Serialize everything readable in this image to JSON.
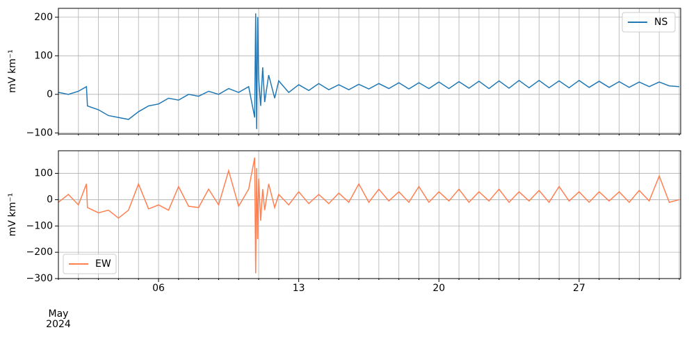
{
  "chart_data": [
    {
      "type": "line",
      "ylabel": "mV km⁻¹",
      "legend": "upper right",
      "grid": true,
      "xlim": [
        1,
        32.07
      ],
      "ylim": [
        -103,
        223
      ],
      "yticks": [
        {
          "value": -100,
          "label": "−100"
        },
        0,
        100,
        200
      ],
      "xminor": [
        1,
        2,
        3,
        4,
        5,
        6,
        7,
        8,
        9,
        10,
        11,
        12,
        13,
        14,
        15,
        16,
        17,
        18,
        19,
        20,
        21,
        22,
        23,
        24,
        25,
        26,
        27,
        28,
        29,
        30,
        31,
        32
      ],
      "x": [
        1,
        1.5,
        2,
        2.4,
        2.45,
        3,
        3.5,
        4,
        4.5,
        5,
        5.5,
        6,
        6.5,
        7,
        7.5,
        8,
        8.5,
        9,
        9.5,
        10,
        10.5,
        10.8,
        10.85,
        10.9,
        10.95,
        11,
        11.1,
        11.2,
        11.3,
        11.5,
        11.8,
        12,
        12.5,
        13,
        13.5,
        14,
        14.5,
        15,
        15.5,
        16,
        16.5,
        17,
        17.5,
        18,
        18.5,
        19,
        19.5,
        20,
        20.5,
        21,
        21.5,
        22,
        22.5,
        23,
        23.5,
        24,
        24.5,
        25,
        25.5,
        26,
        26.5,
        27,
        27.5,
        28,
        28.5,
        29,
        29.5,
        30,
        30.5,
        31,
        31.5,
        32
      ],
      "series": [
        {
          "name": "NS",
          "color": "#1f77b4",
          "values": [
            5,
            0,
            8,
            20,
            -30,
            -40,
            -55,
            -60,
            -65,
            -45,
            -30,
            -25,
            -10,
            -15,
            0,
            -5,
            8,
            0,
            15,
            5,
            20,
            -60,
            210,
            -90,
            200,
            40,
            -30,
            70,
            -20,
            50,
            -10,
            35,
            5,
            25,
            10,
            28,
            12,
            25,
            12,
            26,
            14,
            28,
            15,
            30,
            14,
            30,
            15,
            32,
            15,
            33,
            16,
            34,
            15,
            35,
            16,
            36,
            17,
            36,
            17,
            35,
            17,
            36,
            18,
            34,
            18,
            33,
            18,
            32,
            20,
            32,
            22,
            20
          ]
        }
      ]
    },
    {
      "type": "line",
      "ylabel": "mV km⁻¹",
      "legend": "lower left",
      "grid": true,
      "xlim": [
        1,
        32.07
      ],
      "ylim": [
        -300,
        186
      ],
      "yticks": [
        {
          "value": -300,
          "label": "−300"
        },
        {
          "value": -200,
          "label": "−200"
        },
        {
          "value": -100,
          "label": "−100"
        },
        0,
        100
      ],
      "xticks": [
        {
          "value": 6,
          "label": "06"
        },
        13,
        20,
        27
      ],
      "xminor": [
        1,
        2,
        3,
        4,
        5,
        7,
        8,
        9,
        10,
        11,
        12,
        14,
        15,
        16,
        17,
        18,
        19,
        21,
        22,
        23,
        24,
        25,
        26,
        28,
        29,
        30,
        31,
        32
      ],
      "x_date_label": [
        "May",
        "2024"
      ],
      "x": [
        1,
        1.5,
        2,
        2.4,
        2.45,
        3,
        3.5,
        4,
        4.5,
        5,
        5.5,
        6,
        6.5,
        7,
        7.5,
        8,
        8.5,
        9,
        9.5,
        10,
        10.5,
        10.8,
        10.85,
        10.9,
        10.95,
        11,
        11.1,
        11.2,
        11.3,
        11.5,
        11.8,
        12,
        12.5,
        13,
        13.5,
        14,
        14.5,
        15,
        15.5,
        16,
        16.5,
        17,
        17.5,
        18,
        18.5,
        19,
        19.5,
        20,
        20.5,
        21,
        21.5,
        22,
        22.5,
        23,
        23.5,
        24,
        24.5,
        25,
        25.5,
        26,
        26.5,
        27,
        27.5,
        28,
        28.5,
        29,
        29.5,
        30,
        30.5,
        31,
        31.5,
        32
      ],
      "series": [
        {
          "name": "EW",
          "color": "#ff7f50",
          "values": [
            -10,
            20,
            -20,
            60,
            -30,
            -50,
            -40,
            -70,
            -40,
            60,
            -35,
            -20,
            -40,
            50,
            -25,
            -30,
            40,
            -20,
            110,
            -25,
            40,
            160,
            -280,
            120,
            -150,
            80,
            -80,
            40,
            -40,
            60,
            -30,
            20,
            -20,
            30,
            -15,
            20,
            -15,
            25,
            -10,
            60,
            -10,
            40,
            -5,
            30,
            -10,
            50,
            -10,
            30,
            -5,
            40,
            -10,
            30,
            -5,
            40,
            -10,
            30,
            -5,
            35,
            -10,
            50,
            -5,
            30,
            -10,
            30,
            -5,
            30,
            -10,
            35,
            -5,
            90,
            -10,
            0
          ]
        }
      ]
    }
  ]
}
